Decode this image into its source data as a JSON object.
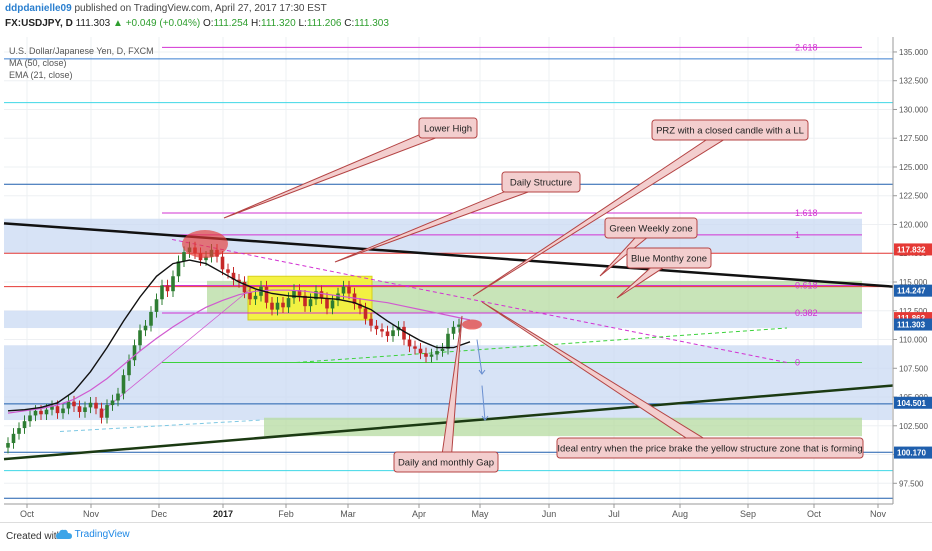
{
  "header": {
    "username": "ddpdanielle09",
    "published": "published on TradingView.com, April 27, 2017 17:30 EST",
    "symbol": "FX:USDJPY, D",
    "last": "111.303",
    "change": "+0.049 (+0.04%)",
    "open": "111.254",
    "high": "111.320",
    "low": "111.206",
    "close": "111.303",
    "o_label": "O:",
    "h_label": "H:",
    "l_label": "L:",
    "c_label": "C:"
  },
  "legend": {
    "title": "U.S. Dollar/Japanese Yen, D, FXCM",
    "ma": "MA (50, close)",
    "ema": "EMA (21, close)"
  },
  "footer": {
    "created_with": "Created with",
    "brand": "TradingView"
  },
  "colors": {
    "bull": "#2e7d32",
    "bear": "#c62828",
    "ma": "#d05ad0",
    "ema": "#111111",
    "fib": "#d233d2",
    "blue_zone": "#c9d9f3",
    "green_zone": "#b6dba0",
    "yellow_zone": "#f5f23c",
    "annotation_fill": "#f3cece",
    "annotation_stroke": "#b44444"
  },
  "chart_data": {
    "type": "candlestick",
    "x_tick_labels": [
      "Oct",
      "Nov",
      "Dec",
      "2017",
      "Feb",
      "Mar",
      "Apr",
      "May",
      "Jun",
      "Jul",
      "Aug",
      "Sep",
      "Oct",
      "Nov"
    ],
    "y_tick_labels": [
      97.5,
      100.0,
      102.5,
      105.0,
      107.5,
      110.0,
      112.5,
      115.0,
      117.5,
      120.0,
      122.5,
      125.0,
      127.5,
      130.0,
      132.5,
      135.0
    ],
    "ylim": [
      95.7,
      136.3
    ],
    "price_labels": [
      {
        "value": 117.832,
        "color": "#e53935"
      },
      {
        "value": 114.247,
        "color": "#1f5fad"
      },
      {
        "value": 111.862,
        "color": "#e53935"
      },
      {
        "value": 111.303,
        "color": "#1f5fad"
      },
      {
        "value": 104.501,
        "color": "#1f5fad"
      },
      {
        "value": 100.17,
        "color": "#1f5fad"
      }
    ],
    "fib_levels": [
      {
        "label": "2.618",
        "value": 135.4
      },
      {
        "label": "1.618",
        "value": 121.0
      },
      {
        "label": "1",
        "value": 119.1
      },
      {
        "label": "0.618",
        "value": 114.7
      },
      {
        "label": "0.382",
        "value": 112.3
      },
      {
        "label": "0",
        "value": 108.0
      }
    ],
    "zones": [
      {
        "name": "blue-upper",
        "color": "blue",
        "y1": 117.5,
        "y2": 120.5
      },
      {
        "name": "blue-mid",
        "color": "blue",
        "y1": 111.0,
        "y2": 112.5
      },
      {
        "name": "blue-lower",
        "color": "blue",
        "y1": 103.0,
        "y2": 109.5
      },
      {
        "name": "green-upper",
        "color": "green",
        "y1": 112.3,
        "y2": 115.1
      },
      {
        "name": "green-lower",
        "color": "green",
        "y1": 101.6,
        "y2": 103.2
      },
      {
        "name": "yellow",
        "color": "yellow",
        "y1": 111.7,
        "y2": 115.5
      }
    ],
    "annotations": [
      "Lower High",
      "Daily Structure",
      "PRZ with a closed candle with a LL",
      "Green Weekly zone",
      "Blue Monthy zone",
      "Daily and monthly Gap",
      "Ideal entry when the price brake the yellow structure zone that is forming"
    ],
    "series": [
      {
        "name": "MA (50, close)",
        "type": "line"
      },
      {
        "name": "EMA (21, close)",
        "type": "line"
      }
    ],
    "closes": [
      101.0,
      101.8,
      102.3,
      102.9,
      103.4,
      103.8,
      103.5,
      103.9,
      104.2,
      103.6,
      104.0,
      104.6,
      104.2,
      103.7,
      104.1,
      104.5,
      104.0,
      103.2,
      104.3,
      104.7,
      105.3,
      106.9,
      108.2,
      109.5,
      110.8,
      111.2,
      112.4,
      113.5,
      114.7,
      114.2,
      115.5,
      116.8,
      117.6,
      118.0,
      117.5,
      116.9,
      117.2,
      117.8,
      117.2,
      116.1,
      115.8,
      115.2,
      115.0,
      114.1,
      113.5,
      113.8,
      114.6,
      113.2,
      112.6,
      113.2,
      112.8,
      113.6,
      114.3,
      113.8,
      112.9,
      113.5,
      114.2,
      113.6,
      112.7,
      113.4,
      114.0,
      114.6,
      114.0,
      113.1,
      112.7,
      111.8,
      111.2,
      110.9,
      110.7,
      110.3,
      110.8,
      111.1,
      110.0,
      109.4,
      109.2,
      108.8,
      108.5,
      108.7,
      109.0,
      109.2,
      110.5,
      111.1,
      111.3
    ],
    "ma50": [
      103.6,
      103.8,
      104.0,
      104.3,
      104.8,
      105.6,
      106.6,
      107.8,
      109.0,
      110.1,
      111.1,
      112.0,
      112.8,
      113.4,
      113.9,
      114.2,
      114.3,
      114.3,
      114.2,
      114.0,
      113.8,
      113.6,
      113.4,
      113.2,
      112.9,
      112.6,
      112.3,
      112.0,
      111.7
    ],
    "ema21": [
      103.8,
      103.9,
      104.1,
      104.5,
      105.5,
      107.2,
      109.3,
      111.6,
      113.7,
      115.5,
      116.6,
      116.9,
      116.6,
      115.8,
      115.0,
      114.4,
      114.0,
      113.8,
      113.7,
      113.6,
      113.5,
      113.2,
      112.6,
      111.6,
      110.7,
      109.9,
      109.3,
      109.3,
      109.8
    ]
  }
}
